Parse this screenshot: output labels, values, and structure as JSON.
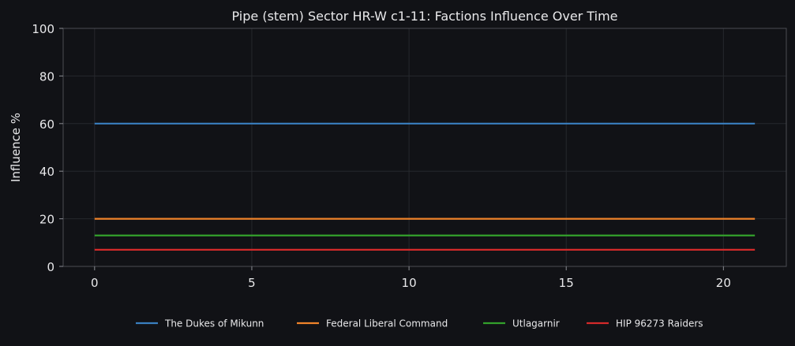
{
  "chart_data": {
    "type": "line",
    "title": "Pipe (stem) Sector HR-W c1-11: Factions Influence Over Time",
    "xlabel": "",
    "ylabel": "Influence %",
    "xlim": [
      -1,
      22
    ],
    "ylim": [
      0,
      100
    ],
    "xticks": [
      0,
      5,
      10,
      15,
      20
    ],
    "yticks": [
      0,
      20,
      40,
      60,
      80,
      100
    ],
    "grid": true,
    "legend_position": "bottom",
    "series": [
      {
        "name": "The Dukes of Mikunn",
        "color": "#3a7fc0",
        "x": [
          0,
          21
        ],
        "y": [
          60,
          60
        ]
      },
      {
        "name": "Federal Liberal Command",
        "color": "#f0832a",
        "x": [
          0,
          21
        ],
        "y": [
          20,
          20
        ]
      },
      {
        "name": "Utlagarnir",
        "color": "#33a02c",
        "x": [
          0,
          21
        ],
        "y": [
          13,
          13
        ]
      },
      {
        "name": "HIP 96273 Raiders",
        "color": "#d42a2a",
        "x": [
          0,
          21
        ],
        "y": [
          7,
          7
        ]
      }
    ]
  }
}
